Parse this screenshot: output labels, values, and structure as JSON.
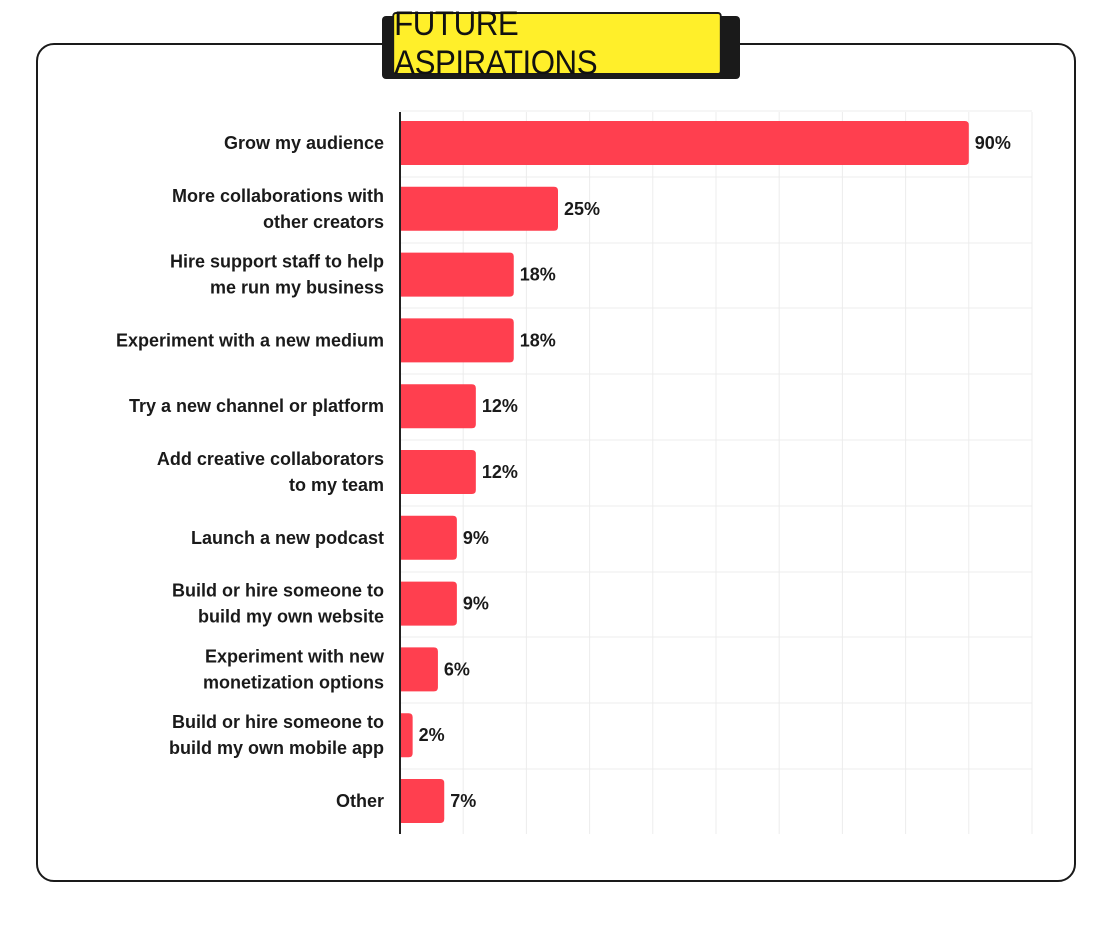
{
  "colors": {
    "bar": "#ff3f4f",
    "title_bg": "#ffef2a",
    "grid": "#ececec",
    "axis": "#222222"
  },
  "chart_data": {
    "type": "bar",
    "orientation": "horizontal",
    "title": "FUTURE ASPIRATIONS",
    "categories": [
      [
        "Grow my audience"
      ],
      [
        "More collaborations with",
        "other creators"
      ],
      [
        "Hire support staff to help",
        "me run my business"
      ],
      [
        "Experiment with a new medium"
      ],
      [
        "Try a new channel or platform"
      ],
      [
        "Add creative collaborators",
        "to my team"
      ],
      [
        "Launch a new podcast"
      ],
      [
        "Build or hire someone to",
        "build my own website"
      ],
      [
        "Experiment with new",
        "monetization options"
      ],
      [
        "Build or hire someone to",
        "build my own mobile app"
      ],
      [
        "Other"
      ]
    ],
    "values": [
      90,
      25,
      18,
      18,
      12,
      12,
      9,
      9,
      6,
      2,
      7
    ],
    "value_labels": [
      "90%",
      "25%",
      "18%",
      "18%",
      "12%",
      "12%",
      "9%",
      "9%",
      "6%",
      "2%",
      "7%"
    ],
    "xlim": [
      0,
      100
    ],
    "grid": true,
    "legend": "none"
  }
}
